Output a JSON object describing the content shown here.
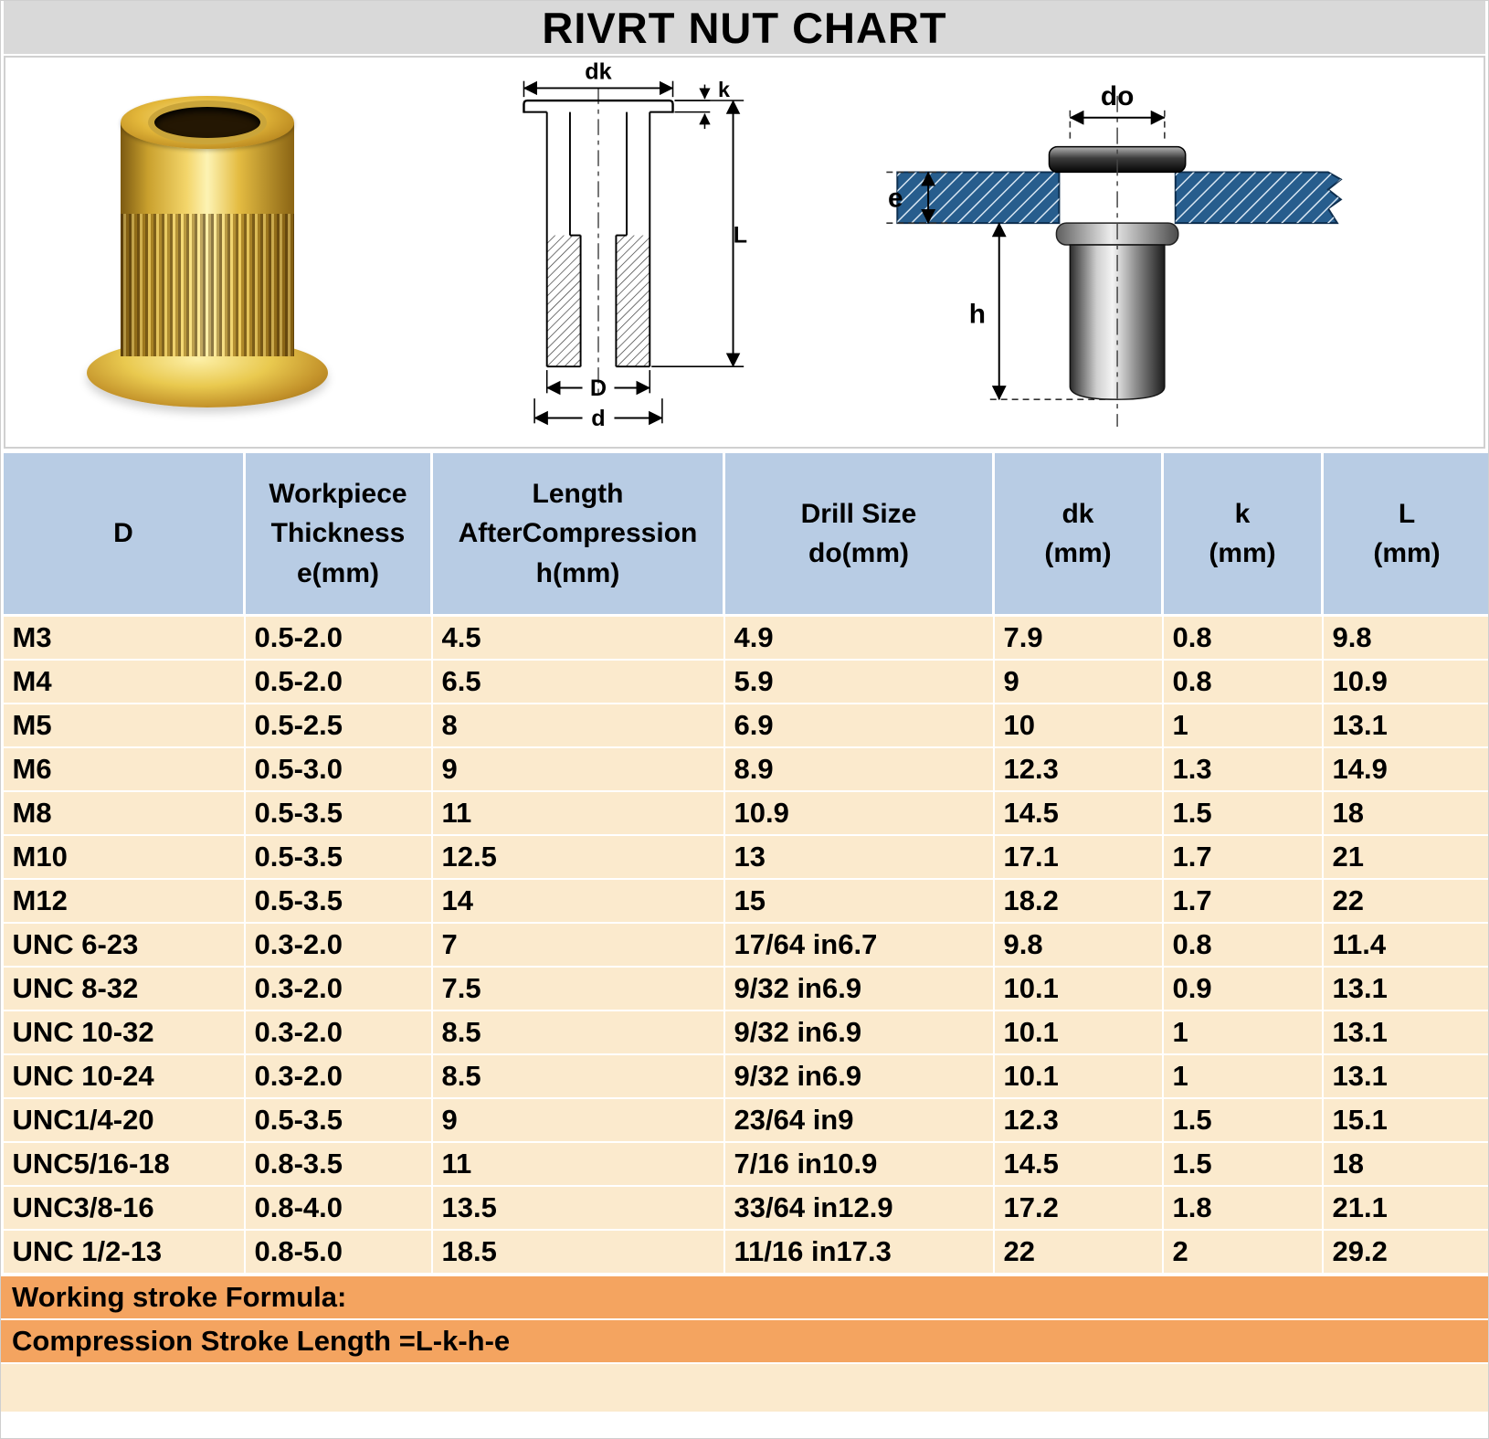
{
  "title": "RIVRT NUT CHART",
  "figures": {
    "drawing": {
      "dk": "dk",
      "k": "k",
      "L": "L",
      "D": "D",
      "d": "d"
    },
    "installed": {
      "do": "do",
      "e": "e",
      "h": "h"
    }
  },
  "chart_data": {
    "type": "table",
    "title": "RIVRT NUT CHART",
    "columns": [
      "D",
      "Workpiece\nThickness\ne(mm)",
      "Length\nAfterCompression\nh(mm)",
      "Drill Size\ndo(mm)",
      "dk\n(mm)",
      "k\n(mm)",
      "L\n(mm)"
    ],
    "rows": [
      [
        "M3",
        "0.5-2.0",
        "4.5",
        "4.9",
        "7.9",
        "0.8",
        "9.8"
      ],
      [
        "M4",
        "0.5-2.0",
        "6.5",
        "5.9",
        "9",
        "0.8",
        "10.9"
      ],
      [
        "M5",
        "0.5-2.5",
        "8",
        "6.9",
        "10",
        "1",
        "13.1"
      ],
      [
        "M6",
        "0.5-3.0",
        "9",
        "8.9",
        "12.3",
        "1.3",
        "14.9"
      ],
      [
        "M8",
        "0.5-3.5",
        "11",
        "10.9",
        "14.5",
        "1.5",
        "18"
      ],
      [
        "M10",
        "0.5-3.5",
        "12.5",
        "13",
        "17.1",
        "1.7",
        "21"
      ],
      [
        "M12",
        "0.5-3.5",
        "14",
        "15",
        "18.2",
        "1.7",
        "22"
      ],
      [
        "UNC 6-23",
        "0.3-2.0",
        "7",
        "17/64 in6.7",
        "9.8",
        "0.8",
        "11.4"
      ],
      [
        "UNC 8-32",
        "0.3-2.0",
        "7.5",
        "9/32 in6.9",
        "10.1",
        "0.9",
        "13.1"
      ],
      [
        "UNC 10-32",
        "0.3-2.0",
        "8.5",
        "9/32 in6.9",
        "10.1",
        "1",
        "13.1"
      ],
      [
        "UNC 10-24",
        "0.3-2.0",
        "8.5",
        "9/32 in6.9",
        "10.1",
        "1",
        "13.1"
      ],
      [
        "UNC1/4-20",
        "0.5-3.5",
        "9",
        "23/64 in9",
        "12.3",
        "1.5",
        "15.1"
      ],
      [
        "UNC5/16-18",
        "0.8-3.5",
        "11",
        "7/16 in10.9",
        "14.5",
        "1.5",
        "18"
      ],
      [
        "UNC3/8-16",
        "0.8-4.0",
        "13.5",
        "33/64 in12.9",
        "17.2",
        "1.8",
        "21.1"
      ],
      [
        "UNC 1/2-13",
        "0.8-5.0",
        "18.5",
        "11/16 in17.3",
        "22",
        "2",
        "29.2"
      ]
    ]
  },
  "footer": {
    "line1": "Working stroke Formula:",
    "line2": "Compression Stroke Length =L-k-h-e"
  },
  "colors": {
    "title_bg": "#d9d9d9",
    "header_bg": "#b8cce4",
    "row_bg": "#fbeacd",
    "footer_bg": "#f4a460",
    "strip_bg": "#fbeacd",
    "plate_blue": "#275d8d",
    "nut_gold": "#e3b73a"
  }
}
